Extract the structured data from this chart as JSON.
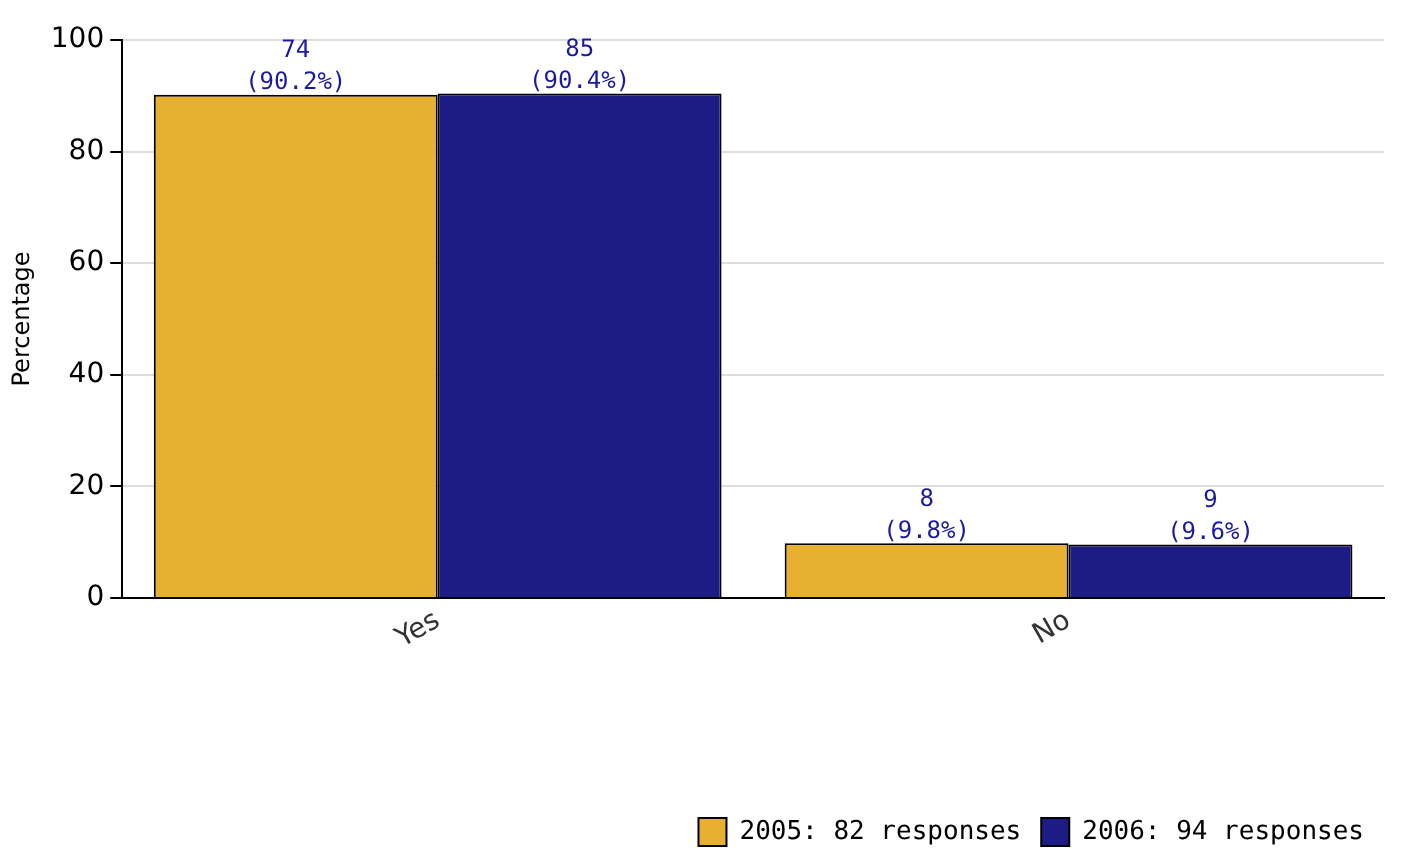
{
  "chart_data": {
    "type": "bar",
    "ylabel": "Percentage",
    "categories": [
      "Yes",
      "No"
    ],
    "series": [
      {
        "name": "2005: 82 responses",
        "color": "#e8b030",
        "values": [
          90.2,
          9.8
        ],
        "value_labels": [
          "74 (90.2%)",
          "8 (9.8%)"
        ]
      },
      {
        "name": "2006: 94 responses",
        "color": "#1c1c84",
        "values": [
          90.4,
          9.6
        ],
        "value_labels": [
          "85 (90.4%)",
          "9 (9.6%)"
        ]
      }
    ],
    "ylim": [
      0,
      100
    ],
    "yticks": [
      0,
      20,
      40,
      60,
      80,
      100
    ],
    "grid": "y",
    "legend": "bottom right"
  }
}
